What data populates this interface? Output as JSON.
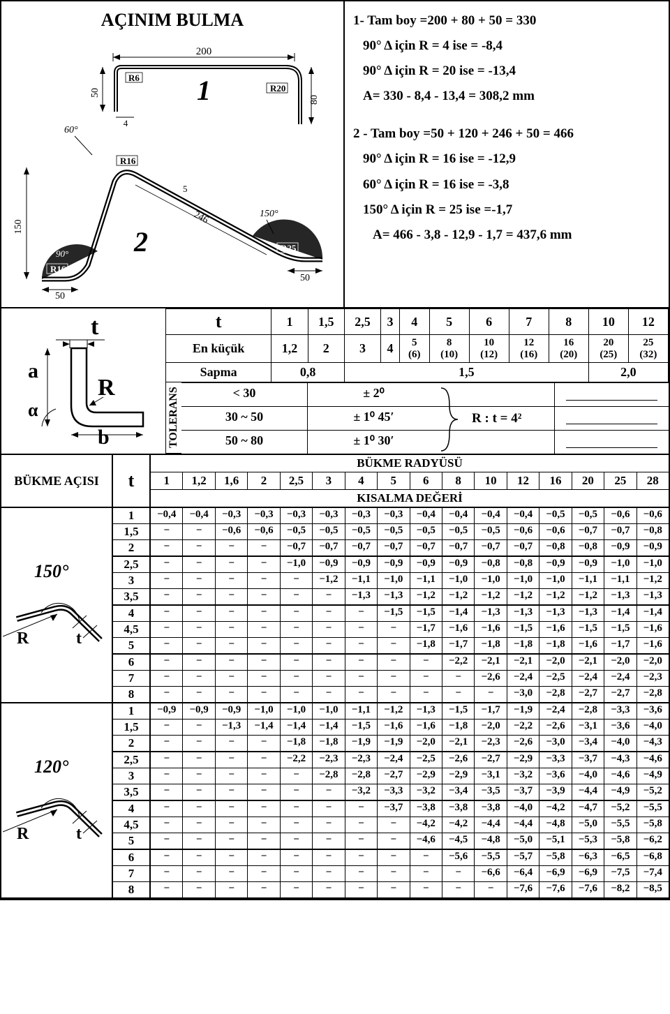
{
  "title": "AÇINIM BULMA",
  "calc_block1": {
    "l1": "1-  Tam boy =200 + 80 + 50 = 330",
    "l2": "90° Δ için R =   4 ise  = -8,4",
    "l3": "90° Δ için R = 20 ise  = -13,4",
    "l4": "A= 330 - 8,4 - 13,4 = 308,2 mm"
  },
  "calc_block2": {
    "l1": "2 - Tam boy =50 + 120 + 246 + 50 = 466",
    "l2": "90° Δ için   R = 16 ise  = -12,9",
    "l3": "60° Δ için   R = 16 ise  = -3,8",
    "l4": "150° Δ için R = 25 ise  =-1,7",
    "l5": "A= 466 - 3,8 - 12,9 - 1,7 = 437,6 mm"
  },
  "diagram1": {
    "dim_200": "200",
    "dim_50": "50",
    "dim_80": "80",
    "dim_4": "4",
    "r6": "R6",
    "r20": "R20",
    "label": "1"
  },
  "diagram2": {
    "dim_150": "150",
    "dim_50l": "50",
    "dim_50r": "50",
    "dim_246": "246",
    "dim_5": "5",
    "r16a": "R16",
    "r16b": "R16",
    "r25": "R25",
    "ang60": "60°",
    "ang90": "90°",
    "ang150": "150°",
    "label": "2"
  },
  "bend_dia": {
    "t": "t",
    "a": "a",
    "b": "b",
    "R": "R",
    "alpha": "α"
  },
  "mini_table": {
    "row_t_label": "t",
    "row_t": [
      "1",
      "1,5",
      "2,5",
      "3",
      "4",
      "5",
      "6",
      "7",
      "8",
      "10",
      "12"
    ],
    "row_ek_label": "En küçük",
    "row_ek": [
      "1,2",
      "2",
      "3",
      "4",
      "5\n(6)",
      "8\n(10)",
      "10\n(12)",
      "12\n(16)",
      "16\n(20)",
      "20\n(25)",
      "25\n(32)"
    ],
    "row_sapma_label": "Sapma",
    "row_sapma": [
      "0,8",
      "1,5",
      "2,0"
    ],
    "tolerans_label": "TOLERANS",
    "tol_rows": [
      {
        "c1": "<  30",
        "c2": "± 2⁰"
      },
      {
        "c1": "30  ~  50",
        "c2": "± 1⁰ 45′"
      },
      {
        "c1": "50  ~  80",
        "c2": "± 1⁰ 30′"
      }
    ],
    "rt_label": "R : t = 4²"
  },
  "main_table": {
    "angle_header": "BÜKME AÇISI",
    "t_header": "t",
    "radius_header": "BÜKME RADYÜSÜ",
    "radius_cols": [
      "1",
      "1,2",
      "1,6",
      "2",
      "2,5",
      "3",
      "4",
      "5",
      "6",
      "8",
      "10",
      "12",
      "16",
      "20",
      "25",
      "28"
    ],
    "short_header": "KISALMA DEĞERİ",
    "sections": [
      {
        "angle_label": "150°",
        "t_vals": [
          "1",
          "1,5",
          "2",
          "2,5",
          "3",
          "3,5",
          "4",
          "4,5",
          "5",
          "6",
          "7",
          "8"
        ],
        "group_after": [
          2,
          5,
          8,
          11
        ],
        "rows": [
          [
            "−0,4",
            "−0,4",
            "−0,3",
            "−0,3",
            "−0,3",
            "−0,3",
            "−0,3",
            "−0,3",
            "−0,4",
            "−0,4",
            "−0,4",
            "−0,4",
            "−0,5",
            "−0,5",
            "−0,6",
            "−0,6"
          ],
          [
            "−",
            "−",
            "−0,6",
            "−0,6",
            "−0,5",
            "−0,5",
            "−0,5",
            "−0,5",
            "−0,5",
            "−0,5",
            "−0,5",
            "−0,6",
            "−0,6",
            "−0,7",
            "−0,7",
            "−0,8"
          ],
          [
            "−",
            "−",
            "−",
            "−",
            "−0,7",
            "−0,7",
            "−0,7",
            "−0,7",
            "−0,7",
            "−0,7",
            "−0,7",
            "−0,7",
            "−0,8",
            "−0,8",
            "−0,9",
            "−0,9"
          ],
          [
            "−",
            "−",
            "−",
            "−",
            "−1,0",
            "−0,9",
            "−0,9",
            "−0,9",
            "−0,9",
            "−0,9",
            "−0,8",
            "−0,8",
            "−0,9",
            "−0,9",
            "−1,0",
            "−1,0"
          ],
          [
            "−",
            "−",
            "−",
            "−",
            "−",
            "−1,2",
            "−1,1",
            "−1,0",
            "−1,1",
            "−1,0",
            "−1,0",
            "−1,0",
            "−1,0",
            "−1,1",
            "−1,1",
            "−1,2"
          ],
          [
            "−",
            "−",
            "−",
            "−",
            "−",
            "−",
            "−1,3",
            "−1,3",
            "−1,2",
            "−1,2",
            "−1,2",
            "−1,2",
            "−1,2",
            "−1,2",
            "−1,3",
            "−1,3"
          ],
          [
            "−",
            "−",
            "−",
            "−",
            "−",
            "−",
            "−",
            "−1,5",
            "−1,5",
            "−1,4",
            "−1,3",
            "−1,3",
            "−1,3",
            "−1,3",
            "−1,4",
            "−1,4"
          ],
          [
            "−",
            "−",
            "−",
            "−",
            "−",
            "−",
            "−",
            "−",
            "−1,7",
            "−1,6",
            "−1,6",
            "−1,5",
            "−1,6",
            "−1,5",
            "−1,5",
            "−1,6"
          ],
          [
            "−",
            "−",
            "−",
            "−",
            "−",
            "−",
            "−",
            "−",
            "−1,8",
            "−1,7",
            "−1,8",
            "−1,8",
            "−1,8",
            "−1,6",
            "−1,7",
            "−1,6"
          ],
          [
            "−",
            "−",
            "−",
            "−",
            "−",
            "−",
            "−",
            "−",
            "−",
            "−2,2",
            "−2,1",
            "−2,1",
            "−2,0",
            "−2,1",
            "−2,0",
            "−2,0"
          ],
          [
            "−",
            "−",
            "−",
            "−",
            "−",
            "−",
            "−",
            "−",
            "−",
            "−",
            "−2,6",
            "−2,4",
            "−2,5",
            "−2,4",
            "−2,4",
            "−2,3"
          ],
          [
            "−",
            "−",
            "−",
            "−",
            "−",
            "−",
            "−",
            "−",
            "−",
            "−",
            "−",
            "−3,0",
            "−2,8",
            "−2,7",
            "−2,7",
            "−2,8"
          ]
        ]
      },
      {
        "angle_label": "120°",
        "t_vals": [
          "1",
          "1,5",
          "2",
          "2,5",
          "3",
          "3,5",
          "4",
          "4,5",
          "5",
          "6",
          "7",
          "8"
        ],
        "group_after": [
          2,
          5,
          8,
          11
        ],
        "rows": [
          [
            "−0,9",
            "−0,9",
            "−0,9",
            "−1,0",
            "−1,0",
            "−1,0",
            "−1,1",
            "−1,2",
            "−1,3",
            "−1,5",
            "−1,7",
            "−1,9",
            "−2,4",
            "−2,8",
            "−3,3",
            "−3,6"
          ],
          [
            "−",
            "−",
            "−1,3",
            "−1,4",
            "−1,4",
            "−1,4",
            "−1,5",
            "−1,6",
            "−1,6",
            "−1,8",
            "−2,0",
            "−2,2",
            "−2,6",
            "−3,1",
            "−3,6",
            "−4,0"
          ],
          [
            "−",
            "−",
            "−",
            "−",
            "−1,8",
            "−1,8",
            "−1,9",
            "−1,9",
            "−2,0",
            "−2,1",
            "−2,3",
            "−2,6",
            "−3,0",
            "−3,4",
            "−4,0",
            "−4,3"
          ],
          [
            "−",
            "−",
            "−",
            "−",
            "−2,2",
            "−2,3",
            "−2,3",
            "−2,4",
            "−2,5",
            "−2,6",
            "−2,7",
            "−2,9",
            "−3,3",
            "−3,7",
            "−4,3",
            "−4,6"
          ],
          [
            "−",
            "−",
            "−",
            "−",
            "−",
            "−2,8",
            "−2,8",
            "−2,7",
            "−2,9",
            "−2,9",
            "−3,1",
            "−3,2",
            "−3,6",
            "−4,0",
            "−4,6",
            "−4,9"
          ],
          [
            "−",
            "−",
            "−",
            "−",
            "−",
            "−",
            "−3,2",
            "−3,3",
            "−3,2",
            "−3,4",
            "−3,5",
            "−3,7",
            "−3,9",
            "−4,4",
            "−4,9",
            "−5,2"
          ],
          [
            "−",
            "−",
            "−",
            "−",
            "−",
            "−",
            "−",
            "−3,7",
            "−3,8",
            "−3,8",
            "−3,8",
            "−4,0",
            "−4,2",
            "−4,7",
            "−5,2",
            "−5,5"
          ],
          [
            "−",
            "−",
            "−",
            "−",
            "−",
            "−",
            "−",
            "−",
            "−4,2",
            "−4,2",
            "−4,4",
            "−4,4",
            "−4,8",
            "−5,0",
            "−5,5",
            "−5,8"
          ],
          [
            "−",
            "−",
            "−",
            "−",
            "−",
            "−",
            "−",
            "−",
            "−4,6",
            "−4,5",
            "−4,8",
            "−5,0",
            "−5,1",
            "−5,3",
            "−5,8",
            "−6,2"
          ],
          [
            "−",
            "−",
            "−",
            "−",
            "−",
            "−",
            "−",
            "−",
            "−",
            "−5,6",
            "−5,5",
            "−5,7",
            "−5,8",
            "−6,3",
            "−6,5",
            "−6,8"
          ],
          [
            "−",
            "−",
            "−",
            "−",
            "−",
            "−",
            "−",
            "−",
            "−",
            "−",
            "−6,6",
            "−6,4",
            "−6,9",
            "−6,9",
            "−7,5",
            "−7,4"
          ],
          [
            "−",
            "−",
            "−",
            "−",
            "−",
            "−",
            "−",
            "−",
            "−",
            "−",
            "−",
            "−7,6",
            "−7,6",
            "−7,6",
            "−8,2",
            "−8,5"
          ]
        ]
      }
    ]
  }
}
